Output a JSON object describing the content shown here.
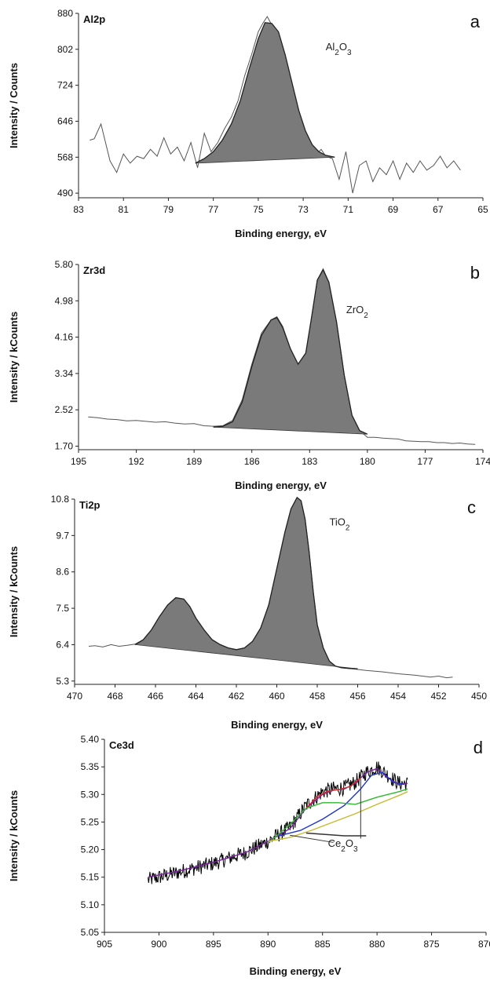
{
  "chart_data": [
    {
      "type": "area",
      "panel_letter": "a",
      "element_label": "Al2p",
      "xlabel": "Binding energy, eV",
      "ylabel": "Intensity / Counts",
      "x_reversed": true,
      "xlim": [
        83,
        65
      ],
      "ylim": [
        480,
        880
      ],
      "xticks": [
        "83",
        "81",
        "79",
        "77",
        "75",
        "73",
        "71",
        "69",
        "67",
        "65"
      ],
      "yticks": [
        "490",
        "568",
        "646",
        "724",
        "802",
        "880"
      ],
      "ytick_values": [
        490,
        568,
        646,
        724,
        802,
        880
      ],
      "annotations": [
        {
          "text": "Al",
          "sub": "2",
          "text2": "O",
          "sub2": "3",
          "x": 72.0,
          "y": 800
        }
      ],
      "series": [
        {
          "kind": "raw",
          "color": "#555555",
          "x": [
            82.5,
            82.3,
            82.0,
            81.6,
            81.3,
            81.0,
            80.7,
            80.4,
            80.1,
            79.8,
            79.5,
            79.2,
            78.9,
            78.6,
            78.3,
            78.0,
            77.7,
            77.4,
            77.1,
            76.8,
            76.5,
            76.2,
            75.9,
            75.6,
            75.3,
            75.0,
            74.8,
            74.6,
            74.4,
            74.2,
            74.0,
            73.8,
            73.6,
            73.4,
            73.2,
            73.0,
            72.8,
            72.6,
            72.4,
            72.2,
            72.0,
            71.7,
            71.4,
            71.1,
            70.8,
            70.5,
            70.2,
            69.9,
            69.6,
            69.3,
            69.0,
            68.7,
            68.4,
            68.1,
            67.8,
            67.5,
            67.2,
            66.9,
            66.6,
            66.3,
            66.0
          ],
          "y": [
            605,
            608,
            640,
            560,
            535,
            575,
            555,
            570,
            565,
            585,
            570,
            610,
            575,
            590,
            560,
            600,
            545,
            620,
            580,
            600,
            630,
            655,
            690,
            745,
            790,
            840,
            858,
            873,
            855,
            820,
            770,
            730,
            700,
            670,
            640,
            612,
            600,
            590,
            575,
            585,
            570,
            565,
            520,
            580,
            490,
            550,
            560,
            515,
            545,
            530,
            560,
            520,
            555,
            535,
            560,
            540,
            550,
            570,
            545,
            560,
            540
          ]
        },
        {
          "kind": "fit",
          "x": [
            77.8,
            77.4,
            77.0,
            76.6,
            76.2,
            75.8,
            75.4,
            75.0,
            74.7,
            74.4,
            74.1,
            73.8,
            73.5,
            73.2,
            72.9,
            72.6,
            72.3,
            72.0,
            71.6
          ],
          "y": [
            555,
            565,
            580,
            605,
            640,
            690,
            760,
            825,
            860,
            858,
            840,
            790,
            730,
            670,
            625,
            595,
            580,
            572,
            568
          ],
          "baseline_start": 555,
          "baseline_end": 568
        }
      ]
    },
    {
      "type": "area",
      "panel_letter": "b",
      "element_label": "Zr3d",
      "xlabel": "Binding energy, eV",
      "ylabel": "Intensity / kCounts",
      "x_reversed": true,
      "xlim": [
        195,
        174
      ],
      "ylim": [
        1.62,
        5.8
      ],
      "xticks": [
        "195",
        "192",
        "189",
        "186",
        "183",
        "180",
        "177",
        "174"
      ],
      "yticks": [
        "1.70",
        "2.52",
        "3.34",
        "4.16",
        "4.98",
        "5.80"
      ],
      "ytick_values": [
        1.7,
        2.52,
        3.34,
        4.16,
        4.98,
        5.8
      ],
      "annotations": [
        {
          "text": "ZrO",
          "sub": "2",
          "text2": "",
          "sub2": "",
          "x": 181.1,
          "y": 4.7
        }
      ],
      "series": [
        {
          "kind": "raw",
          "color": "#555555",
          "x": [
            194.5,
            194.0,
            193.5,
            193.0,
            192.5,
            192.0,
            191.5,
            191.0,
            190.5,
            190.0,
            189.5,
            189.0,
            188.5,
            188.0,
            187.5,
            187.0,
            186.5,
            186.0,
            185.5,
            185.0,
            184.7,
            184.4,
            184.0,
            183.6,
            183.2,
            182.9,
            182.6,
            182.3,
            182.0,
            181.6,
            181.2,
            180.8,
            180.4,
            180.0,
            179.6,
            179.2,
            178.8,
            178.4,
            178.0,
            177.6,
            177.2,
            176.8,
            176.4,
            176.0,
            175.6,
            175.2,
            174.8,
            174.4
          ],
          "y": [
            2.36,
            2.34,
            2.31,
            2.3,
            2.27,
            2.28,
            2.26,
            2.24,
            2.25,
            2.22,
            2.2,
            2.21,
            2.16,
            2.15,
            2.16,
            2.28,
            2.75,
            3.55,
            4.25,
            4.55,
            4.62,
            4.4,
            3.9,
            3.55,
            3.8,
            4.6,
            5.45,
            5.7,
            5.4,
            4.5,
            3.3,
            2.4,
            2.05,
            1.9,
            1.9,
            1.88,
            1.87,
            1.86,
            1.82,
            1.81,
            1.8,
            1.8,
            1.78,
            1.78,
            1.76,
            1.77,
            1.75,
            1.74
          ]
        },
        {
          "kind": "fit",
          "x": [
            188.0,
            187.5,
            187.0,
            186.5,
            186.0,
            185.5,
            185.0,
            184.7,
            184.4,
            184.0,
            183.6,
            183.2,
            182.9,
            182.6,
            182.3,
            182.0,
            181.6,
            181.2,
            180.8,
            180.4,
            180.0
          ],
          "y": [
            2.13,
            2.15,
            2.25,
            2.7,
            3.5,
            4.2,
            4.55,
            4.6,
            4.38,
            3.9,
            3.55,
            3.8,
            4.6,
            5.45,
            5.68,
            5.4,
            4.5,
            3.3,
            2.4,
            2.05,
            1.97
          ],
          "baseline_start": 2.13,
          "baseline_end": 1.97
        }
      ]
    },
    {
      "type": "area",
      "panel_letter": "c",
      "element_label": "Ti2p",
      "xlabel": "Binding energy, eV",
      "ylabel": "Intensity / kCounts",
      "x_reversed": true,
      "xlim": [
        470,
        450
      ],
      "ylim": [
        5.2,
        10.8
      ],
      "xticks": [
        "470",
        "468",
        "466",
        "464",
        "462",
        "460",
        "458",
        "456",
        "454",
        "452",
        "450"
      ],
      "yticks": [
        "5.3",
        "6.4",
        "7.5",
        "8.6",
        "9.7",
        "10.8"
      ],
      "ytick_values": [
        5.3,
        6.4,
        7.5,
        8.6,
        9.7,
        10.8
      ],
      "annotations": [
        {
          "text": "TiO",
          "sub": "2",
          "text2": "",
          "sub2": "",
          "x": 457.4,
          "y": 10.0
        }
      ],
      "series": [
        {
          "kind": "raw",
          "color": "#555555",
          "x": [
            469.3,
            469.0,
            468.6,
            468.2,
            467.8,
            467.4,
            467.0,
            466.6,
            466.2,
            465.8,
            465.4,
            465.0,
            464.6,
            464.3,
            464.0,
            463.6,
            463.2,
            462.8,
            462.4,
            462.0,
            461.6,
            461.2,
            460.8,
            460.4,
            460.0,
            459.6,
            459.3,
            459.0,
            458.8,
            458.6,
            458.4,
            458.2,
            458.0,
            457.7,
            457.4,
            457.1,
            456.8,
            456.4,
            456.0,
            455.6,
            455.2,
            454.8,
            454.4,
            454.0,
            453.6,
            453.2,
            452.8,
            452.4,
            452.0,
            451.6,
            451.3
          ],
          "y": [
            6.35,
            6.37,
            6.33,
            6.4,
            6.35,
            6.38,
            6.42,
            6.55,
            6.85,
            7.25,
            7.6,
            7.82,
            7.78,
            7.55,
            7.2,
            6.85,
            6.55,
            6.4,
            6.3,
            6.25,
            6.3,
            6.5,
            6.9,
            7.6,
            8.7,
            9.8,
            10.5,
            10.85,
            10.75,
            10.2,
            9.2,
            8.0,
            7.0,
            6.3,
            5.9,
            5.75,
            5.7,
            5.68,
            5.65,
            5.62,
            5.6,
            5.58,
            5.55,
            5.52,
            5.5,
            5.48,
            5.45,
            5.42,
            5.45,
            5.4,
            5.42
          ]
        },
        {
          "kind": "fit",
          "x": [
            467.0,
            466.6,
            466.2,
            465.8,
            465.4,
            465.0,
            464.6,
            464.3,
            464.0,
            463.6,
            463.2,
            462.8,
            462.4,
            462.0,
            461.6,
            461.2,
            460.8,
            460.4,
            460.0,
            459.6,
            459.3,
            459.0,
            458.8,
            458.6,
            458.4,
            458.2,
            458.0,
            457.7,
            457.4,
            457.1,
            456.8,
            456.4,
            456.0
          ],
          "y": [
            6.4,
            6.55,
            6.85,
            7.25,
            7.6,
            7.82,
            7.78,
            7.55,
            7.2,
            6.85,
            6.55,
            6.4,
            6.3,
            6.25,
            6.3,
            6.5,
            6.9,
            7.6,
            8.7,
            9.8,
            10.5,
            10.85,
            10.75,
            10.2,
            9.2,
            8.0,
            7.0,
            6.3,
            5.9,
            5.75,
            5.7,
            5.68,
            5.67
          ],
          "baseline_start": 6.4,
          "baseline_end": 5.67
        }
      ]
    },
    {
      "type": "line",
      "panel_letter": "d",
      "element_label": "Ce3d",
      "xlabel": "Binding energy, eV",
      "ylabel": "Intensity / kCounts",
      "x_reversed": true,
      "xlim": [
        905,
        870
      ],
      "ylim": [
        5.05,
        5.4
      ],
      "xticks": [
        "905",
        "900",
        "895",
        "890",
        "885",
        "880",
        "875",
        "870"
      ],
      "yticks": [
        "5.05",
        "5.10",
        "5.15",
        "5.20",
        "5.25",
        "5.30",
        "5.35",
        "5.40"
      ],
      "ytick_values": [
        5.05,
        5.1,
        5.15,
        5.2,
        5.25,
        5.3,
        5.35,
        5.4
      ],
      "annotations": [
        {
          "text": "Ce",
          "sub": "2",
          "text2": "O",
          "sub2": "3",
          "x": 884.5,
          "y": 5.205
        }
      ],
      "series": [
        {
          "kind": "noisy",
          "color": "#000000",
          "noise": 0.014,
          "x": [
            901.0,
            898.0,
            895.0,
            892.0,
            890.0,
            888.0,
            886.5,
            885.0,
            884.0,
            883.0,
            882.0,
            881.0,
            880.0,
            879.0,
            878.0,
            877.2
          ],
          "y": [
            5.145,
            5.16,
            5.175,
            5.195,
            5.215,
            5.24,
            5.28,
            5.305,
            5.31,
            5.312,
            5.322,
            5.34,
            5.35,
            5.335,
            5.32,
            5.32
          ]
        },
        {
          "kind": "line",
          "color": "#7a1fa0",
          "x": [
            901.0,
            898.0,
            895.0,
            892.0,
            890.0,
            888.0,
            886.5,
            885.0,
            884.0,
            883.0,
            882.0,
            881.0,
            880.0,
            879.0,
            878.0,
            877.2
          ],
          "y": [
            5.15,
            5.162,
            5.177,
            5.195,
            5.215,
            5.238,
            5.275,
            5.3,
            5.308,
            5.31,
            5.32,
            5.34,
            5.347,
            5.33,
            5.318,
            5.32
          ]
        },
        {
          "kind": "line",
          "color": "#d62a1f",
          "x": [
            886.5,
            885.5,
            884.5,
            883.5,
            882.5,
            881.5
          ],
          "y": [
            5.275,
            5.296,
            5.306,
            5.309,
            5.314,
            5.33
          ]
        },
        {
          "kind": "line",
          "color": "#1f35c8",
          "x": [
            889.0,
            887.0,
            885.0,
            883.0,
            881.5,
            880.5,
            879.5,
            878.5,
            877.5
          ],
          "y": [
            5.225,
            5.235,
            5.255,
            5.28,
            5.31,
            5.335,
            5.34,
            5.322,
            5.318
          ]
        },
        {
          "kind": "line",
          "color": "#2db82d",
          "x": [
            890.0,
            888.0,
            886.5,
            885.0,
            883.5,
            882.0,
            880.0,
            878.0,
            877.2
          ],
          "y": [
            5.212,
            5.245,
            5.275,
            5.285,
            5.285,
            5.282,
            5.295,
            5.305,
            5.31
          ]
        },
        {
          "kind": "line",
          "color": "#c8b830",
          "x": [
            890.0,
            888.0,
            886.0,
            884.0,
            882.0,
            880.0,
            878.0,
            877.2
          ],
          "y": [
            5.215,
            5.222,
            5.235,
            5.25,
            5.265,
            5.282,
            5.298,
            5.305
          ]
        },
        {
          "kind": "line",
          "color": "#333333",
          "x": [
            886.5,
            883.0,
            881.0
          ],
          "y": [
            5.23,
            5.225,
            5.225
          ]
        }
      ],
      "leaders": [
        {
          "x1": 884.0,
          "y1": 5.213,
          "x2": 888.0,
          "y2": 5.226
        },
        {
          "x1": 881.5,
          "y1": 5.22,
          "x2": 881.5,
          "y2": 5.328
        }
      ]
    }
  ]
}
